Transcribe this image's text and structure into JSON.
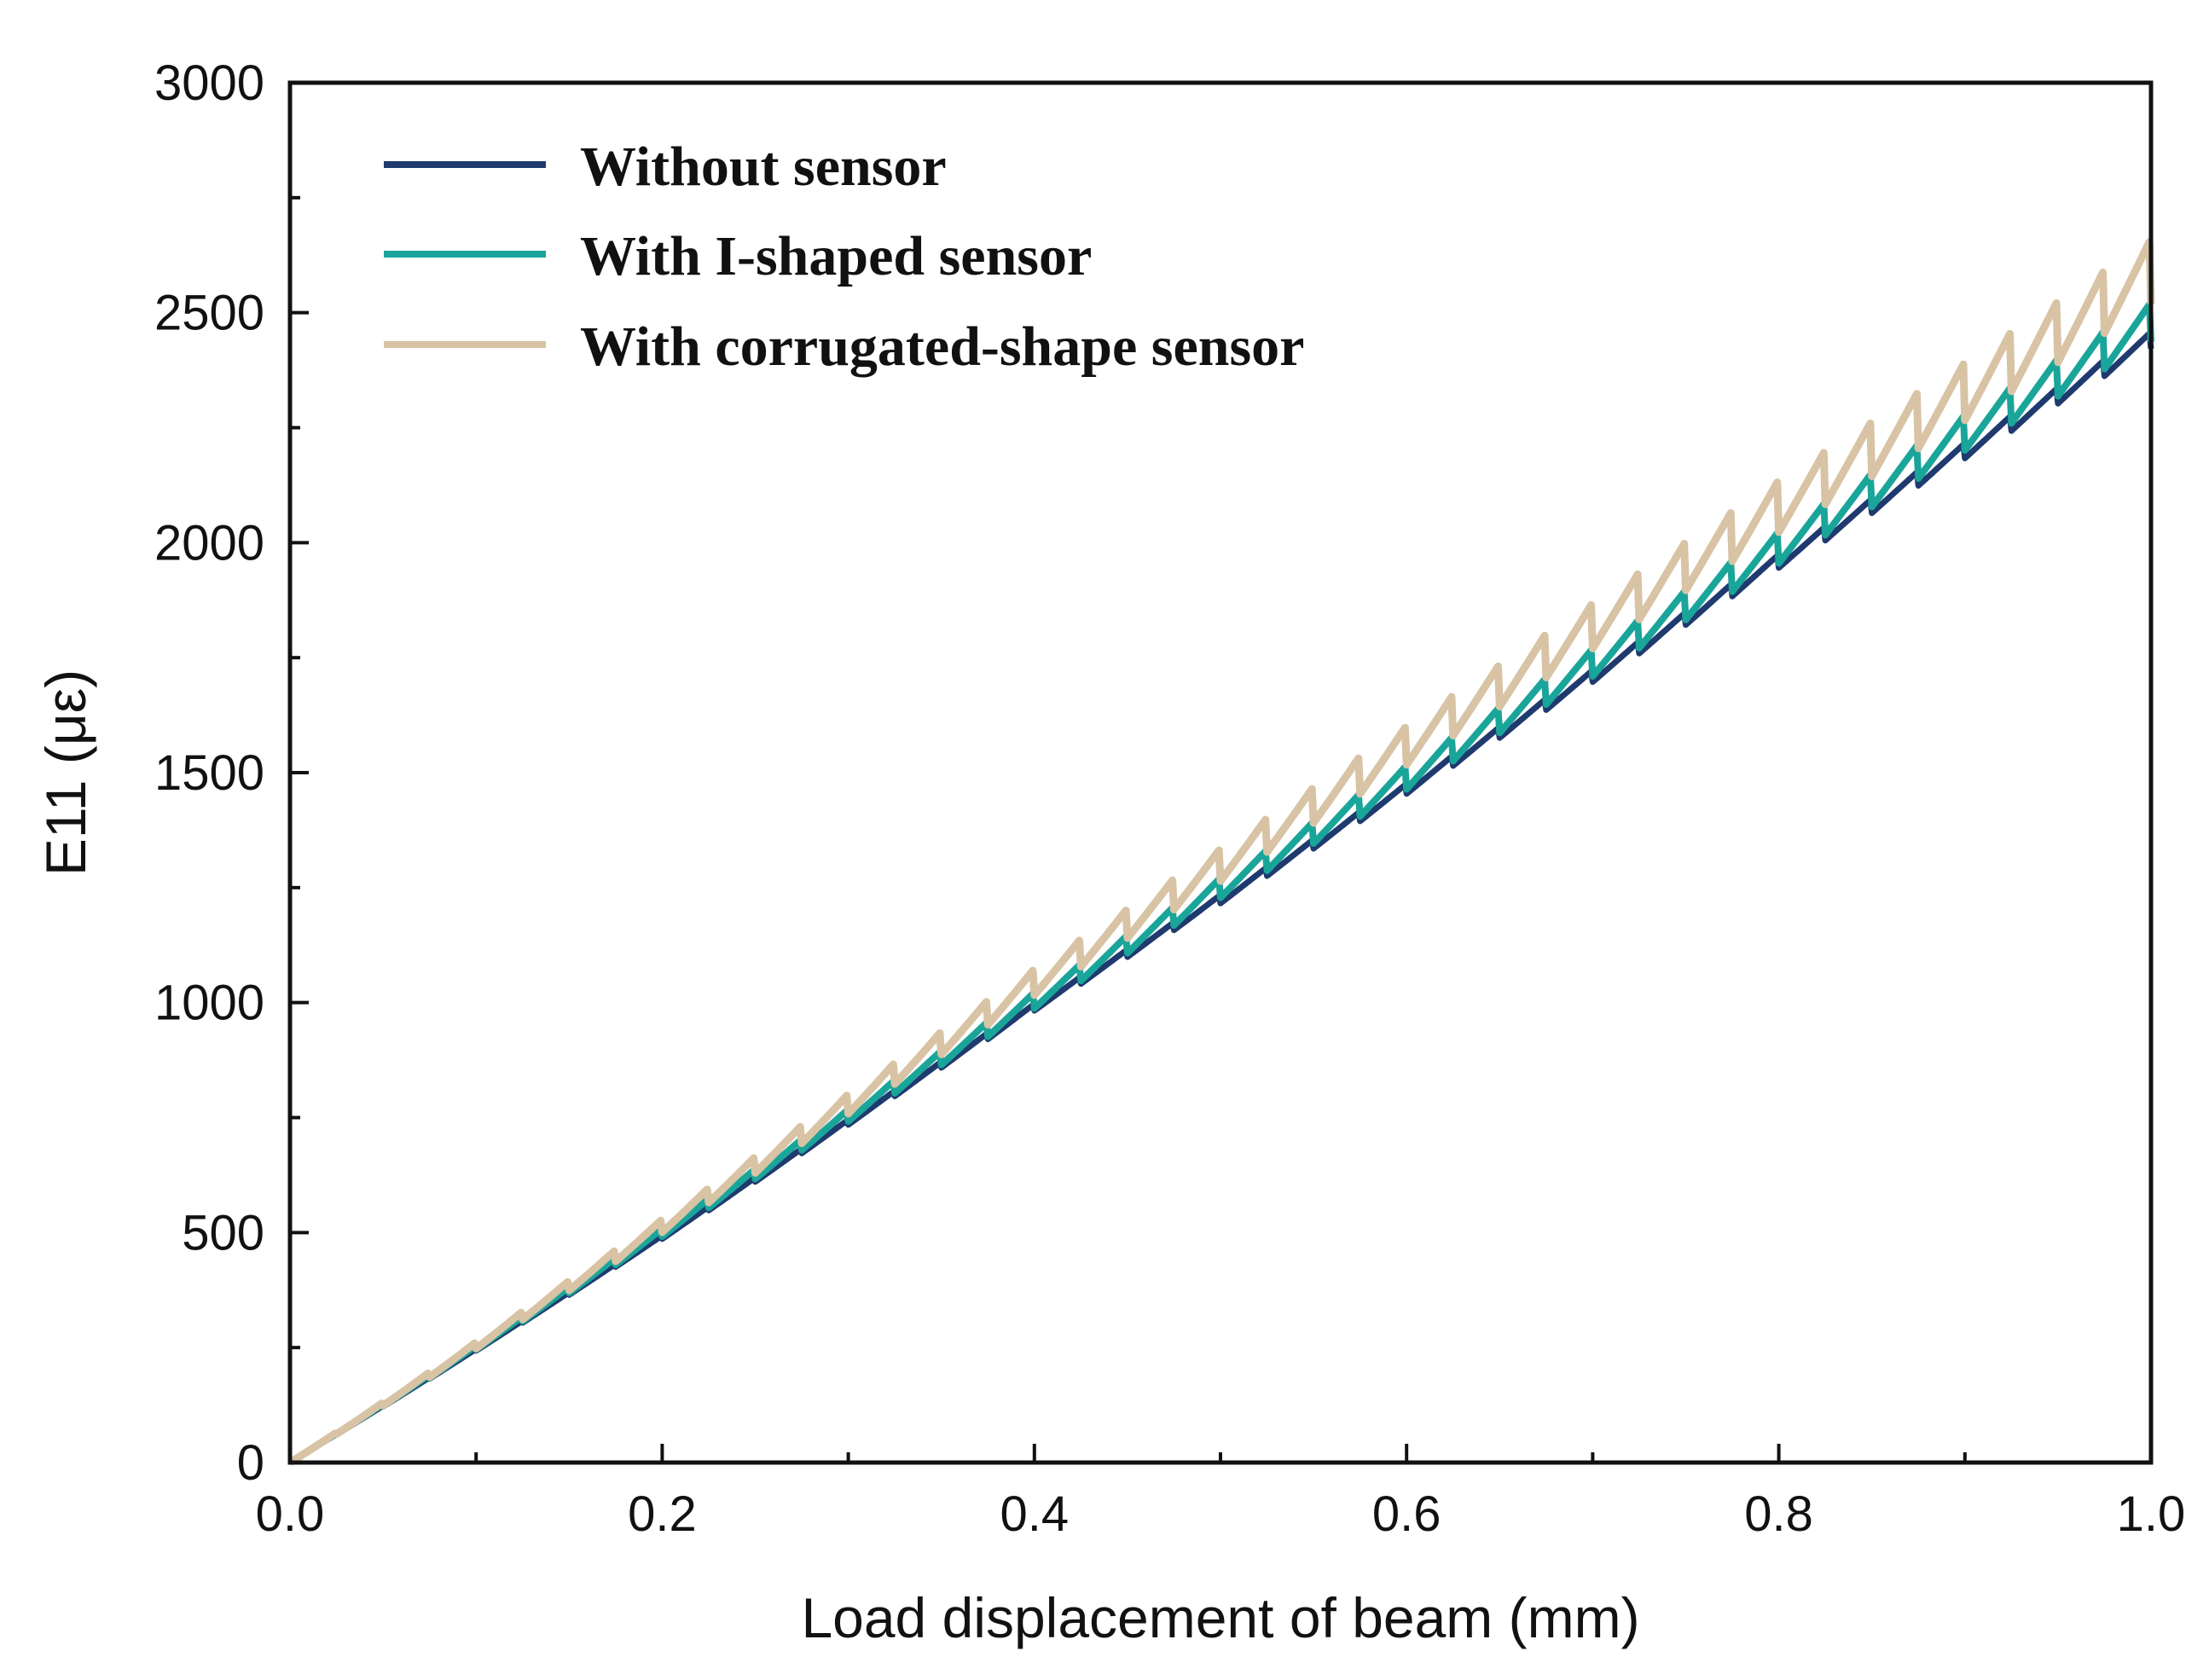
{
  "chart_data": {
    "type": "line",
    "title": "",
    "xlabel": "Load displacement of beam (mm)",
    "ylabel": "E11 (με)",
    "xlim": [
      0.0,
      1.0
    ],
    "ylim": [
      0,
      3000
    ],
    "x_ticks": [
      "0.0",
      "0.2",
      "0.4",
      "0.6",
      "0.8",
      "1.0"
    ],
    "y_ticks": [
      "0",
      "500",
      "1000",
      "1500",
      "2000",
      "2500",
      "3000"
    ],
    "x_tick_values": [
      0.0,
      0.2,
      0.4,
      0.6,
      0.8,
      1.0
    ],
    "y_tick_values": [
      0,
      500,
      1000,
      1500,
      2000,
      2500,
      3000
    ],
    "legend_position": "top-left",
    "series": [
      {
        "name": "Without sensor",
        "color": "#1f3a6e",
        "x": [
          0.0,
          0.1,
          0.2,
          0.3,
          0.4,
          0.5,
          0.6,
          0.7,
          0.8,
          0.9,
          1.0
        ],
        "y": [
          0,
          245,
          490,
          740,
          990,
          1225,
          1465,
          1710,
          1960,
          2200,
          2440
        ],
        "sawtooth_amplitude": 0.015
      },
      {
        "name": "With I-shaped sensor",
        "color": "#1aa59a",
        "x": [
          0.0,
          0.1,
          0.2,
          0.3,
          0.4,
          0.5,
          0.6,
          0.7,
          0.8,
          0.9,
          1.0
        ],
        "y": [
          0,
          250,
          500,
          755,
          1005,
          1250,
          1490,
          1740,
          1990,
          2240,
          2480
        ],
        "sawtooth_amplitude": 0.035
      },
      {
        "name": "With corrugated-shape sensor",
        "color": "#d8c3a5",
        "x": [
          0.0,
          0.1,
          0.2,
          0.3,
          0.4,
          0.5,
          0.6,
          0.7,
          0.8,
          0.9,
          1.0
        ],
        "y": [
          0,
          255,
          515,
          780,
          1045,
          1300,
          1560,
          1820,
          2080,
          2330,
          2590
        ],
        "sawtooth_amplitude": 0.055
      }
    ]
  }
}
